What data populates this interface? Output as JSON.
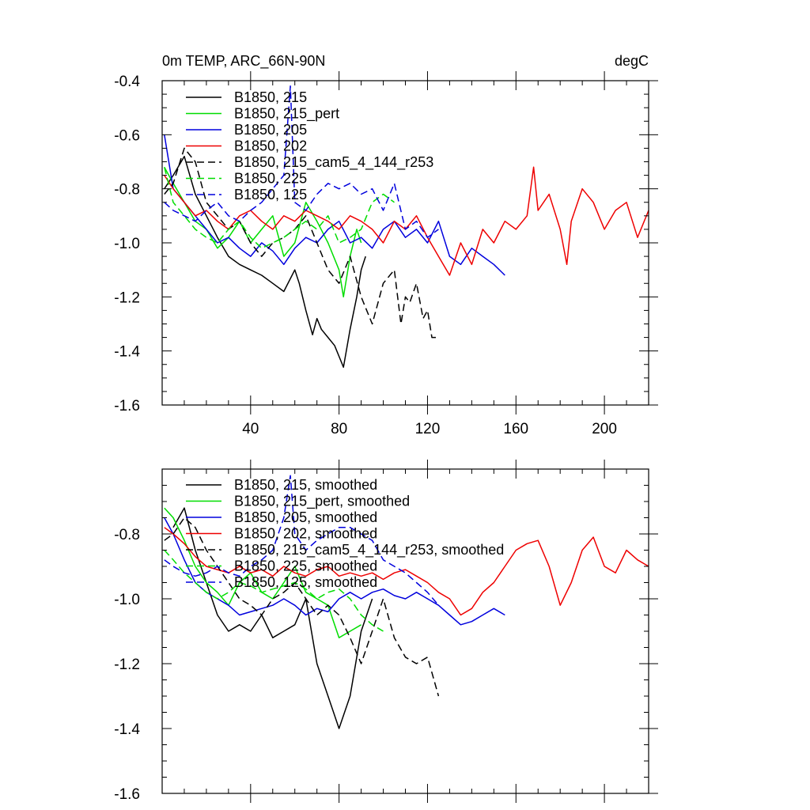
{
  "chart_data": [
    {
      "type": "line",
      "title_left": "0m TEMP, ARC_66N-90N",
      "title_right": "degC",
      "xlabel": "",
      "ylabel": "",
      "xlim": [
        0,
        220
      ],
      "ylim": [
        -1.6,
        -0.4
      ],
      "x_ticks": [
        40,
        80,
        120,
        160,
        200
      ],
      "x_tick_labels": [
        "40",
        "80",
        "120",
        "160",
        "200"
      ],
      "y_ticks": [
        -1.6,
        -1.4,
        -1.2,
        -1.0,
        -0.8,
        -0.6,
        -0.4
      ],
      "y_tick_labels": [
        "-1.6",
        "-1.4",
        "-1.2",
        "-1.0",
        "-0.8",
        "-0.6",
        "-0.4"
      ],
      "legend": [
        "B1850, 215",
        "B1850, 215_pert",
        "B1850, 205",
        "B1850, 202",
        "B1850, 215_cam5_4_144_r253",
        "B1850, 225",
        "B1850, 125"
      ],
      "series": [
        {
          "name": "B1850, 215",
          "color": "#000000",
          "dash": "solid",
          "x": [
            1,
            5,
            10,
            15,
            20,
            25,
            30,
            35,
            40,
            45,
            50,
            55,
            60,
            62,
            65,
            68,
            70,
            72,
            75,
            78,
            80,
            82,
            85,
            88,
            90,
            92
          ],
          "y": [
            -0.8,
            -0.75,
            -0.68,
            -0.82,
            -0.9,
            -0.98,
            -1.05,
            -1.08,
            -1.1,
            -1.12,
            -1.15,
            -1.18,
            -1.1,
            -1.15,
            -1.25,
            -1.34,
            -1.28,
            -1.32,
            -1.35,
            -1.38,
            -1.42,
            -1.46,
            -1.32,
            -1.2,
            -1.1,
            -1.05
          ]
        },
        {
          "name": "B1850, 215_pert",
          "color": "#00dd00",
          "dash": "solid",
          "x": [
            1,
            5,
            10,
            15,
            20,
            25,
            30,
            35,
            40,
            45,
            50,
            55,
            60,
            65,
            70,
            75,
            80,
            82,
            85,
            88,
            90
          ],
          "y": [
            -0.72,
            -0.78,
            -0.85,
            -0.92,
            -0.95,
            -1.02,
            -0.98,
            -0.92,
            -1.0,
            -0.95,
            -0.9,
            -1.05,
            -1.0,
            -0.85,
            -0.92,
            -1.0,
            -1.1,
            -1.2,
            -1.05,
            -0.95,
            -1.0
          ]
        },
        {
          "name": "B1850, 205",
          "color": "#0000dd",
          "dash": "solid",
          "x": [
            1,
            5,
            10,
            15,
            20,
            25,
            30,
            35,
            40,
            45,
            50,
            55,
            60,
            65,
            70,
            75,
            80,
            85,
            90,
            95,
            100,
            105,
            110,
            115,
            120,
            125,
            130,
            135,
            140,
            145,
            150,
            155
          ],
          "y": [
            -0.6,
            -0.8,
            -0.85,
            -0.9,
            -0.95,
            -1.0,
            -0.98,
            -1.02,
            -1.05,
            -1.0,
            -1.03,
            -1.08,
            -1.02,
            -0.98,
            -1.0,
            -0.95,
            -0.92,
            -1.0,
            -0.98,
            -1.02,
            -0.95,
            -0.92,
            -0.98,
            -0.95,
            -1.0,
            -0.92,
            -1.05,
            -1.08,
            -1.02,
            -1.05,
            -1.08,
            -1.12
          ]
        },
        {
          "name": "B1850, 202",
          "color": "#ee0000",
          "dash": "solid",
          "x": [
            1,
            5,
            10,
            15,
            20,
            25,
            30,
            35,
            40,
            45,
            50,
            55,
            60,
            65,
            70,
            75,
            80,
            85,
            90,
            95,
            100,
            105,
            110,
            115,
            120,
            125,
            130,
            135,
            140,
            145,
            150,
            155,
            160,
            165,
            168,
            170,
            175,
            180,
            183,
            185,
            190,
            195,
            200,
            205,
            210,
            215,
            220
          ],
          "y": [
            -0.75,
            -0.8,
            -0.85,
            -0.9,
            -0.88,
            -0.92,
            -0.95,
            -0.9,
            -0.88,
            -0.92,
            -0.95,
            -0.9,
            -0.92,
            -0.88,
            -0.9,
            -0.92,
            -0.95,
            -0.9,
            -0.92,
            -0.95,
            -1.0,
            -0.92,
            -0.95,
            -0.9,
            -0.98,
            -1.05,
            -1.12,
            -1.0,
            -1.08,
            -0.95,
            -1.0,
            -0.92,
            -0.95,
            -0.9,
            -0.72,
            -0.88,
            -0.82,
            -0.95,
            -1.08,
            -0.92,
            -0.8,
            -0.85,
            -0.95,
            -0.88,
            -0.85,
            -0.98,
            -0.88
          ]
        },
        {
          "name": "B1850, 215_cam5_4_144_r253",
          "color": "#000000",
          "dash": "dashed",
          "x": [
            1,
            5,
            10,
            15,
            20,
            25,
            30,
            35,
            40,
            45,
            50,
            55,
            60,
            65,
            70,
            75,
            80,
            85,
            90,
            95,
            100,
            105,
            108,
            110,
            112,
            115,
            118,
            120,
            122,
            125
          ],
          "y": [
            -0.82,
            -0.78,
            -0.65,
            -0.7,
            -0.85,
            -0.9,
            -0.95,
            -0.92,
            -1.0,
            -1.05,
            -1.0,
            -0.98,
            -0.95,
            -0.9,
            -1.0,
            -1.1,
            -1.15,
            -1.05,
            -1.2,
            -1.3,
            -1.15,
            -1.1,
            -1.3,
            -1.2,
            -1.22,
            -1.15,
            -1.28,
            -1.25,
            -1.35,
            -1.35
          ]
        },
        {
          "name": "B1850, 225",
          "color": "#00dd00",
          "dash": "dashed",
          "x": [
            1,
            5,
            10,
            15,
            20,
            25,
            30,
            35,
            40,
            45,
            50,
            55,
            60,
            65,
            70,
            75,
            80,
            85,
            90,
            95,
            100,
            105
          ],
          "y": [
            -0.72,
            -0.85,
            -0.9,
            -0.95,
            -0.98,
            -1.0,
            -0.95,
            -0.92,
            -0.98,
            -1.02,
            -1.0,
            -0.98,
            -0.95,
            -0.92,
            -0.95,
            -0.9,
            -1.0,
            -0.98,
            -0.95,
            -0.85,
            -0.82,
            -0.85
          ]
        },
        {
          "name": "B1850, 125",
          "color": "#0000dd",
          "dash": "dashed",
          "x": [
            1,
            5,
            10,
            15,
            20,
            25,
            30,
            35,
            40,
            45,
            50,
            55,
            58,
            60,
            65,
            70,
            75,
            80,
            85,
            90,
            95,
            100,
            105,
            110,
            115,
            120,
            125
          ],
          "y": [
            -0.85,
            -0.88,
            -0.9,
            -0.92,
            -0.88,
            -0.85,
            -0.9,
            -0.92,
            -0.88,
            -0.85,
            -0.8,
            -0.75,
            -0.42,
            -0.85,
            -0.88,
            -0.82,
            -0.78,
            -0.8,
            -0.78,
            -0.82,
            -0.8,
            -0.88,
            -0.78,
            -0.95,
            -0.92,
            -0.98,
            -0.95
          ]
        }
      ]
    },
    {
      "type": "line",
      "title_left": "",
      "title_right": "",
      "xlabel": "",
      "ylabel": "",
      "xlim": [
        0,
        220
      ],
      "ylim": [
        -1.6,
        -0.6
      ],
      "x_ticks": [
        40,
        80,
        120,
        160,
        200
      ],
      "x_tick_labels": [],
      "y_ticks": [
        -1.6,
        -1.4,
        -1.2,
        -1.0,
        -0.8
      ],
      "y_tick_labels": [
        "-1.6",
        "-1.4",
        "-1.2",
        "-1.0",
        "-0.8"
      ],
      "legend": [
        "B1850, 215, smoothed",
        "B1850, 215_pert, smoothed",
        "B1850, 205, smoothed",
        "B1850, 202, smoothed",
        "B1850, 215_cam5_4_144_r253, smoothed",
        "B1850, 225, smoothed",
        "B1850, 125, smoothed"
      ],
      "series": [
        {
          "name": "B1850, 215, smoothed",
          "color": "#000000",
          "dash": "solid",
          "x": [
            5,
            10,
            15,
            20,
            25,
            30,
            35,
            40,
            45,
            50,
            55,
            60,
            65,
            70,
            75,
            80,
            85,
            90,
            95
          ],
          "y": [
            -0.78,
            -0.72,
            -0.85,
            -0.95,
            -1.05,
            -1.1,
            -1.08,
            -1.1,
            -1.05,
            -1.12,
            -1.1,
            -1.08,
            -1.0,
            -1.2,
            -1.3,
            -1.4,
            -1.3,
            -1.1,
            -1.0
          ]
        },
        {
          "name": "B1850, 215_pert, smoothed",
          "color": "#00dd00",
          "dash": "solid",
          "x": [
            1,
            5,
            10,
            15,
            20,
            25,
            30,
            35,
            40,
            45,
            50,
            55,
            60,
            65,
            70,
            75,
            80,
            85,
            90
          ],
          "y": [
            -0.72,
            -0.75,
            -0.82,
            -0.9,
            -0.95,
            -0.98,
            -1.02,
            -0.95,
            -0.92,
            -0.98,
            -1.0,
            -0.95,
            -0.9,
            -0.98,
            -1.0,
            -1.02,
            -1.12,
            -1.1,
            -1.08
          ]
        },
        {
          "name": "B1850, 205, smoothed",
          "color": "#0000dd",
          "dash": "solid",
          "x": [
            1,
            5,
            10,
            15,
            20,
            25,
            30,
            35,
            40,
            45,
            50,
            55,
            60,
            65,
            70,
            75,
            80,
            85,
            90,
            95,
            100,
            105,
            110,
            115,
            120,
            125,
            130,
            135,
            140,
            145,
            150,
            155
          ],
          "y": [
            -0.75,
            -0.8,
            -0.88,
            -0.95,
            -0.98,
            -1.0,
            -1.02,
            -1.05,
            -1.04,
            -1.03,
            -1.02,
            -1.0,
            -1.02,
            -1.05,
            -1.03,
            -1.04,
            -1.0,
            -0.98,
            -1.0,
            -0.98,
            -0.97,
            -0.99,
            -1.0,
            -0.98,
            -1.0,
            -1.02,
            -1.05,
            -1.08,
            -1.07,
            -1.05,
            -1.03,
            -1.05
          ]
        },
        {
          "name": "B1850, 202, smoothed",
          "color": "#ee0000",
          "dash": "solid",
          "x": [
            1,
            5,
            10,
            15,
            20,
            25,
            30,
            35,
            40,
            45,
            50,
            55,
            60,
            65,
            70,
            75,
            80,
            85,
            90,
            95,
            100,
            105,
            110,
            115,
            120,
            125,
            130,
            135,
            140,
            145,
            150,
            155,
            160,
            165,
            170,
            175,
            180,
            185,
            190,
            195,
            200,
            205,
            210,
            215,
            220
          ],
          "y": [
            -0.78,
            -0.8,
            -0.83,
            -0.87,
            -0.9,
            -0.91,
            -0.92,
            -0.9,
            -0.92,
            -0.91,
            -0.93,
            -0.9,
            -0.92,
            -0.93,
            -0.91,
            -0.9,
            -0.93,
            -0.92,
            -0.93,
            -0.92,
            -0.94,
            -0.92,
            -0.91,
            -0.93,
            -0.95,
            -0.98,
            -1.0,
            -1.05,
            -1.03,
            -0.98,
            -0.95,
            -0.9,
            -0.85,
            -0.83,
            -0.82,
            -0.9,
            -1.02,
            -0.95,
            -0.85,
            -0.81,
            -0.9,
            -0.92,
            -0.85,
            -0.88,
            -0.9
          ]
        },
        {
          "name": "B1850, 215_cam5_4_144_r253, smoothed",
          "color": "#000000",
          "dash": "dashed",
          "x": [
            1,
            5,
            10,
            15,
            20,
            25,
            30,
            35,
            40,
            45,
            50,
            55,
            60,
            65,
            70,
            75,
            80,
            85,
            90,
            95,
            100,
            105,
            110,
            115,
            120,
            125
          ],
          "y": [
            -0.82,
            -0.8,
            -0.75,
            -0.78,
            -0.85,
            -0.9,
            -0.95,
            -1.0,
            -1.02,
            -1.05,
            -1.0,
            -0.98,
            -0.95,
            -1.0,
            -1.05,
            -1.02,
            -1.05,
            -1.12,
            -1.2,
            -1.1,
            -1.0,
            -1.12,
            -1.18,
            -1.2,
            -1.18,
            -1.3
          ]
        },
        {
          "name": "B1850, 225, smoothed",
          "color": "#00dd00",
          "dash": "dashed",
          "x": [
            1,
            5,
            10,
            15,
            20,
            25,
            30,
            35,
            40,
            45,
            50,
            55,
            60,
            65,
            70,
            75,
            80,
            85,
            90,
            95,
            100
          ],
          "y": [
            -0.85,
            -0.88,
            -0.92,
            -0.95,
            -0.98,
            -1.0,
            -0.98,
            -0.95,
            -0.96,
            -0.98,
            -0.97,
            -0.96,
            -0.95,
            -0.97,
            -1.0,
            -0.98,
            -0.97,
            -1.0,
            -1.05,
            -1.08,
            -1.1
          ]
        },
        {
          "name": "B1850, 125, smoothed",
          "color": "#0000dd",
          "dash": "dashed",
          "x": [
            1,
            5,
            10,
            15,
            20,
            25,
            30,
            35,
            40,
            45,
            50,
            55,
            58,
            60,
            65,
            70,
            75,
            80,
            85,
            90,
            95,
            100,
            105,
            110,
            115,
            120,
            125
          ],
          "y": [
            -0.88,
            -0.9,
            -0.92,
            -0.93,
            -0.92,
            -0.9,
            -0.92,
            -0.93,
            -0.9,
            -0.88,
            -0.85,
            -0.75,
            -0.62,
            -0.8,
            -0.85,
            -0.82,
            -0.8,
            -0.78,
            -0.78,
            -0.8,
            -0.82,
            -0.88,
            -0.9,
            -0.92,
            -0.95,
            -0.98,
            -1.02
          ]
        }
      ]
    }
  ]
}
